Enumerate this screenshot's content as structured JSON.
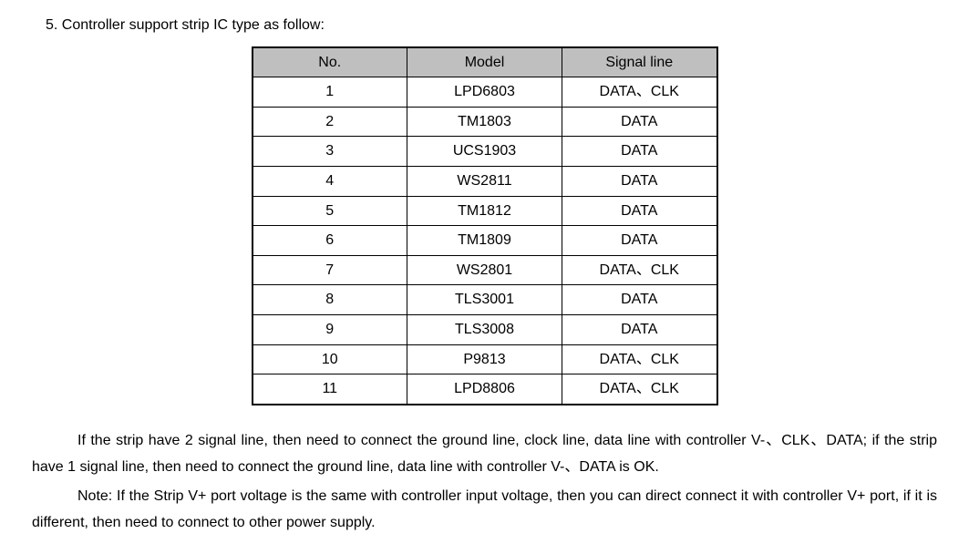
{
  "heading": "5. Controller support strip IC type as follow:",
  "table": {
    "headers": {
      "no": "No.",
      "model": "Model",
      "signal": "Signal line"
    },
    "rows": [
      {
        "no": "1",
        "model": "LPD6803",
        "signal": "DATA、CLK"
      },
      {
        "no": "2",
        "model": "TM1803",
        "signal": "DATA"
      },
      {
        "no": "3",
        "model": "UCS1903",
        "signal": "DATA"
      },
      {
        "no": "4",
        "model": "WS2811",
        "signal": "DATA"
      },
      {
        "no": "5",
        "model": "TM1812",
        "signal": "DATA"
      },
      {
        "no": "6",
        "model": "TM1809",
        "signal": "DATA"
      },
      {
        "no": "7",
        "model": "WS2801",
        "signal": "DATA、CLK"
      },
      {
        "no": "8",
        "model": "TLS3001",
        "signal": "DATA"
      },
      {
        "no": "9",
        "model": "TLS3008",
        "signal": "DATA"
      },
      {
        "no": "10",
        "model": "P9813",
        "signal": "DATA、CLK"
      },
      {
        "no": "11",
        "model": "LPD8806",
        "signal": "DATA、CLK"
      }
    ]
  },
  "para1": "If the strip have 2 signal line, then need to connect the ground line, clock line, data line with controller V-、CLK、DATA; if the strip have 1 signal line, then need to connect the ground line, data line with controller V-、DATA is OK.",
  "para2": "Note: If the Strip V+ port voltage is the same with controller input voltage, then you can direct connect it with controller V+ port, if it is different, then need to connect to other power supply."
}
